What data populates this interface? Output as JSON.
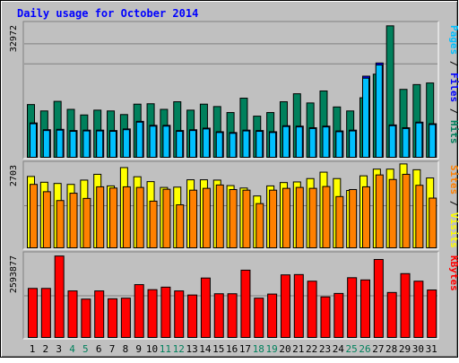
{
  "chart_data": [
    {
      "type": "bar",
      "title": "Daily usage for October 2014",
      "ylabel_parts": [
        {
          "text": "Pages",
          "color": "#00c0ff"
        },
        {
          "text": " / ",
          "color": "#000000"
        },
        {
          "text": "Files",
          "color": "#0000ff"
        },
        {
          "text": " / ",
          "color": "#000000"
        },
        {
          "text": "Hits",
          "color": "#00805c"
        }
      ],
      "ymax_label": "32972",
      "ylim": [
        0,
        32972
      ],
      "categories": [
        "1",
        "2",
        "3",
        "4",
        "5",
        "6",
        "7",
        "8",
        "9",
        "10",
        "11",
        "12",
        "13",
        "14",
        "15",
        "16",
        "17",
        "18",
        "19",
        "20",
        "21",
        "22",
        "23",
        "24",
        "25",
        "26",
        "27",
        "28",
        "29",
        "30",
        "31"
      ],
      "weekend_days": [
        "4",
        "5",
        "11",
        "12",
        "18",
        "19",
        "25",
        "26"
      ],
      "series": [
        {
          "name": "Hits",
          "color": "#00805c",
          "values": [
            13200,
            11600,
            14000,
            12000,
            10600,
            11800,
            11600,
            10700,
            13300,
            13400,
            12000,
            13900,
            11800,
            13300,
            12700,
            11200,
            14800,
            10300,
            11200,
            13900,
            15900,
            13600,
            16600,
            12600,
            11600,
            14900,
            20800,
            32900,
            17000,
            18200,
            18600
          ]
        },
        {
          "name": "Files",
          "color": "#0000ff",
          "values": [
            8600,
            6900,
            7000,
            6700,
            6800,
            6800,
            6700,
            7100,
            9000,
            8000,
            8000,
            6700,
            6900,
            7300,
            6400,
            6200,
            6800,
            6700,
            6400,
            7900,
            7800,
            7400,
            7800,
            6600,
            6800,
            20300,
            23600,
            8100,
            7400,
            8800,
            8400
          ]
        },
        {
          "name": "Pages",
          "color": "#00c0ff",
          "values": [
            8400,
            6700,
            6800,
            6500,
            6600,
            6600,
            6500,
            6900,
            8800,
            7800,
            7800,
            6500,
            6700,
            7100,
            6200,
            6000,
            6600,
            6500,
            6200,
            7700,
            7600,
            7200,
            7600,
            6400,
            6600,
            19800,
            23100,
            7900,
            7200,
            8600,
            8200
          ]
        }
      ]
    },
    {
      "type": "bar",
      "ylabel_parts": [
        {
          "text": "Sites",
          "color": "#ff8000"
        },
        {
          "text": " / ",
          "color": "#000000"
        },
        {
          "text": "Visits",
          "color": "#ffff00"
        }
      ],
      "ymax_label": "2703",
      "ylim": [
        0,
        2703
      ],
      "categories": [
        "1",
        "2",
        "3",
        "4",
        "5",
        "6",
        "7",
        "8",
        "9",
        "10",
        "11",
        "12",
        "13",
        "14",
        "15",
        "16",
        "17",
        "18",
        "19",
        "20",
        "21",
        "22",
        "23",
        "24",
        "25",
        "26",
        "27",
        "28",
        "29",
        "30",
        "31"
      ],
      "series": [
        {
          "name": "Visits",
          "color": "#ffff00",
          "values": [
            2340,
            2150,
            2110,
            2080,
            2220,
            2410,
            2030,
            2630,
            2330,
            2170,
            1980,
            1990,
            2230,
            2230,
            2220,
            2040,
            1960,
            1700,
            2030,
            2140,
            2160,
            2270,
            2480,
            2270,
            1880,
            2360,
            2580,
            2580,
            2750,
            2560,
            2290
          ]
        },
        {
          "name": "Sites",
          "color": "#ff8000",
          "values": [
            2080,
            1840,
            1550,
            1790,
            1620,
            2000,
            1960,
            2000,
            1980,
            1530,
            1920,
            1410,
            1890,
            1950,
            2060,
            1910,
            1890,
            1450,
            1890,
            1950,
            1980,
            1950,
            2010,
            1680,
            1910,
            2000,
            2390,
            2240,
            2410,
            2050,
            1630
          ]
        }
      ]
    },
    {
      "type": "bar",
      "ylabel_parts": [
        {
          "text": "KBytes",
          "color": "#ff0000"
        }
      ],
      "ymax_label": "2593877",
      "ylim": [
        0,
        2593877
      ],
      "categories": [
        "1",
        "2",
        "3",
        "4",
        "5",
        "6",
        "7",
        "8",
        "9",
        "10",
        "11",
        "12",
        "13",
        "14",
        "15",
        "16",
        "17",
        "18",
        "19",
        "20",
        "21",
        "22",
        "23",
        "24",
        "25",
        "26",
        "27",
        "28",
        "29",
        "30",
        "31"
      ],
      "series": [
        {
          "name": "KBytes",
          "color": "#ff0000",
          "values": [
            1560000,
            1560000,
            2590000,
            1480000,
            1220000,
            1480000,
            1230000,
            1250000,
            1680000,
            1520000,
            1600000,
            1480000,
            1350000,
            1890000,
            1390000,
            1390000,
            2140000,
            1250000,
            1380000,
            1990000,
            2000000,
            1790000,
            1290000,
            1400000,
            1900000,
            1830000,
            2480000,
            1430000,
            2030000,
            1790000,
            1510000
          ]
        }
      ]
    }
  ]
}
